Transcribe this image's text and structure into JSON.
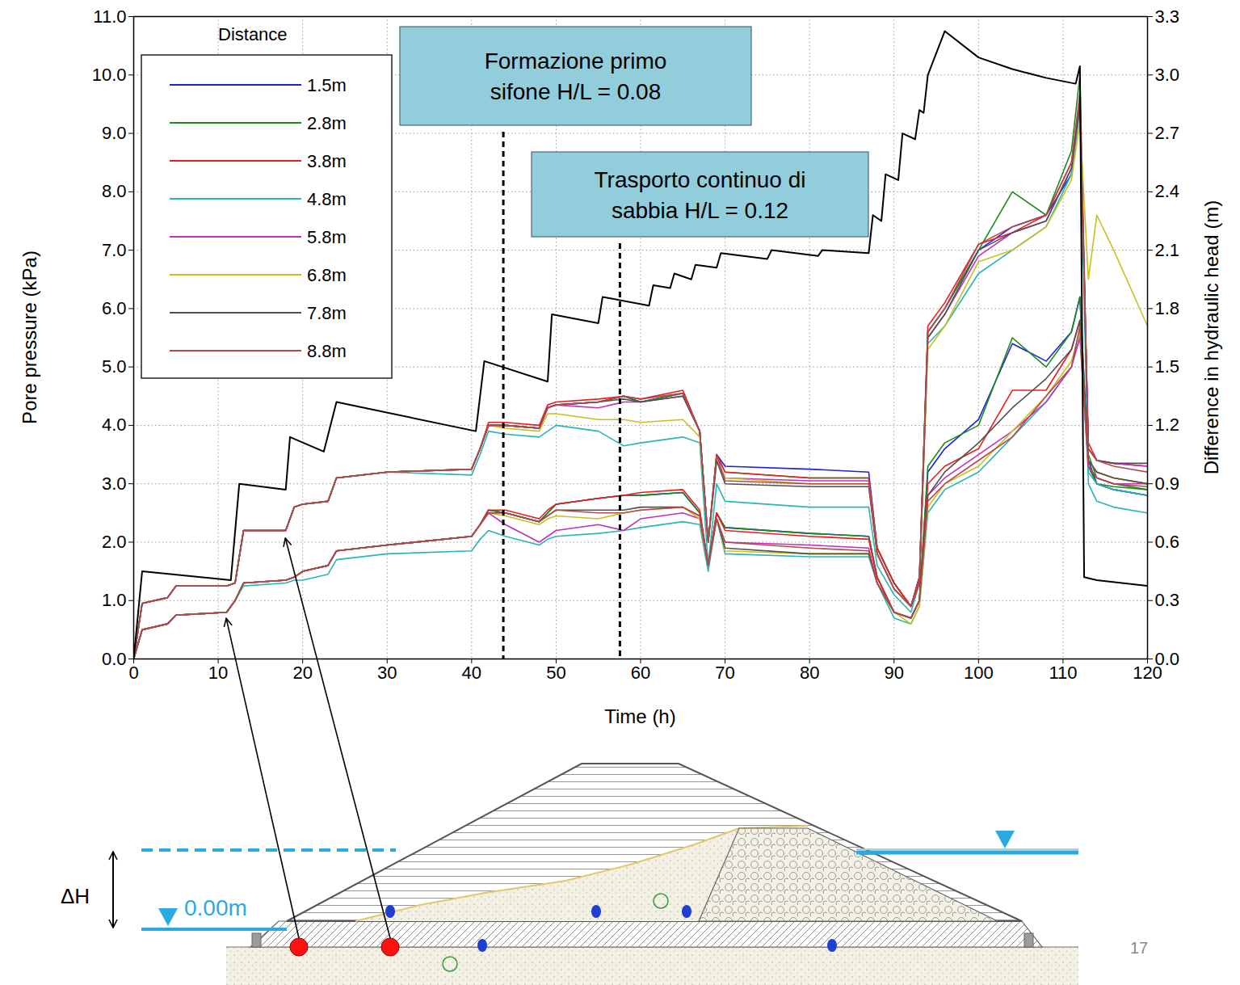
{
  "chart_data": {
    "type": "line",
    "x_label": "Time (h)",
    "y_label": "Pore pressure (kPa)",
    "y2_label": "Difference in hydraulic head (m)",
    "legend_title": "Distance",
    "legend": "top-left",
    "grid": true,
    "xlim": [
      0,
      120
    ],
    "xticks": [
      0,
      10,
      20,
      30,
      40,
      50,
      60,
      70,
      80,
      90,
      100,
      110,
      120
    ],
    "ylim": [
      0,
      11
    ],
    "yticks": [
      {
        "value": 0,
        "label": "0.0"
      },
      {
        "value": 1,
        "label": "1.0"
      },
      {
        "value": 2,
        "label": "2.0"
      },
      {
        "value": 3,
        "label": "3.0"
      },
      {
        "value": 4,
        "label": "4.0"
      },
      {
        "value": 5,
        "label": "5.0"
      },
      {
        "value": 6,
        "label": "6.0"
      },
      {
        "value": 7,
        "label": "7.0"
      },
      {
        "value": 8,
        "label": "8.0"
      },
      {
        "value": 9,
        "label": "9.0"
      },
      {
        "value": 10,
        "label": "10.0"
      },
      {
        "value": 11,
        "label": "11.0"
      }
    ],
    "y2lim": [
      0,
      3.3
    ],
    "y2ticks": [
      {
        "value": 0,
        "label": "0.0"
      },
      0.3,
      0.6,
      0.9,
      1.2,
      1.5,
      1.8,
      2.1,
      2.4,
      2.7,
      {
        "value": 3,
        "label": "3.0"
      },
      3.3
    ],
    "x": [
      0,
      1,
      4,
      5,
      11,
      12,
      13,
      18,
      19,
      20,
      23,
      24,
      30,
      40,
      41,
      42,
      44,
      48,
      49,
      50,
      55,
      58,
      60,
      65,
      67,
      68,
      69,
      70,
      80,
      87,
      88,
      90,
      92,
      93,
      94,
      96,
      100,
      104,
      108,
      111,
      112,
      113,
      114,
      116,
      120
    ],
    "series": [
      {
        "name": "1.5m",
        "color": "#1f1fe0",
        "values": [
          0,
          0.95,
          1.05,
          1.25,
          1.25,
          1.3,
          2.2,
          2.2,
          2.6,
          2.65,
          2.7,
          3.1,
          3.2,
          3.25,
          3.6,
          4.0,
          4.0,
          3.95,
          4.3,
          4.35,
          4.4,
          4.5,
          4.4,
          4.55,
          3.9,
          2.0,
          3.5,
          3.3,
          3.25,
          3.2,
          1.9,
          1.3,
          0.9,
          1.4,
          5.6,
          6.0,
          7.0,
          7.4,
          7.6,
          8.3,
          9.6,
          3.4,
          3.0,
          2.9,
          2.8
        ]
      },
      {
        "name": "2.8m",
        "color": "#1a8a1a",
        "values": [
          0,
          0.95,
          1.05,
          1.25,
          1.25,
          1.3,
          2.2,
          2.2,
          2.6,
          2.65,
          2.7,
          3.1,
          3.2,
          3.25,
          3.6,
          4.0,
          4.0,
          3.95,
          4.3,
          4.35,
          4.4,
          4.5,
          4.4,
          4.55,
          3.9,
          2.0,
          3.5,
          3.2,
          3.1,
          3.1,
          1.9,
          1.3,
          0.9,
          1.4,
          5.6,
          6.0,
          7.0,
          8.0,
          7.6,
          8.7,
          10.0,
          3.5,
          3.1,
          3.0,
          2.9
        ]
      },
      {
        "name": "3.8m",
        "color": "#ee1c1c",
        "values": [
          0,
          0.95,
          1.05,
          1.25,
          1.25,
          1.3,
          2.2,
          2.2,
          2.6,
          2.65,
          2.7,
          3.1,
          3.2,
          3.25,
          3.6,
          4.05,
          4.05,
          4.0,
          4.35,
          4.4,
          4.45,
          4.5,
          4.45,
          4.6,
          3.9,
          2.0,
          3.5,
          3.2,
          3.1,
          3.1,
          1.9,
          1.3,
          0.9,
          1.4,
          5.7,
          6.1,
          7.1,
          7.3,
          7.6,
          8.5,
          9.6,
          3.7,
          3.4,
          3.35,
          3.3
        ]
      },
      {
        "name": "4.8m",
        "color": "#2ab5b5",
        "values": [
          0,
          0.95,
          1.05,
          1.25,
          1.25,
          1.3,
          2.2,
          2.2,
          2.6,
          2.65,
          2.7,
          3.1,
          3.2,
          3.15,
          3.5,
          3.9,
          3.85,
          3.8,
          3.9,
          4.0,
          3.9,
          3.65,
          3.7,
          3.8,
          3.7,
          1.6,
          3.0,
          2.7,
          2.6,
          2.6,
          1.6,
          1.1,
          0.8,
          1.3,
          5.4,
          5.7,
          6.6,
          7.0,
          7.4,
          8.3,
          9.4,
          3.0,
          2.7,
          2.6,
          2.5
        ]
      },
      {
        "name": "5.8m",
        "color": "#c030c0",
        "values": [
          0,
          0.95,
          1.05,
          1.25,
          1.25,
          1.3,
          2.2,
          2.2,
          2.6,
          2.65,
          2.7,
          3.1,
          3.2,
          3.25,
          3.6,
          4.0,
          4.0,
          3.95,
          4.3,
          4.35,
          4.3,
          4.4,
          4.4,
          4.5,
          3.9,
          2.0,
          3.4,
          3.1,
          3.05,
          3.05,
          1.8,
          1.2,
          0.9,
          1.3,
          5.5,
          5.9,
          6.9,
          7.3,
          7.5,
          8.4,
          9.5,
          3.6,
          3.4,
          3.35,
          3.3
        ]
      },
      {
        "name": "6.8m",
        "color": "#c8c020",
        "values": [
          0,
          0.95,
          1.05,
          1.25,
          1.25,
          1.3,
          2.2,
          2.2,
          2.6,
          2.65,
          2.7,
          3.1,
          3.2,
          3.25,
          3.6,
          4.0,
          3.95,
          3.9,
          4.2,
          4.2,
          4.1,
          4.1,
          4.05,
          4.1,
          3.8,
          2.0,
          3.4,
          3.1,
          3.0,
          3.0,
          1.8,
          1.2,
          0.9,
          1.3,
          5.3,
          5.7,
          6.8,
          7.0,
          7.4,
          8.2,
          9.2,
          6.5,
          7.6,
          7.0,
          5.7
        ]
      },
      {
        "name": "7.8m",
        "color": "#505050",
        "values": [
          0,
          0.95,
          1.05,
          1.25,
          1.25,
          1.3,
          2.2,
          2.2,
          2.6,
          2.65,
          2.7,
          3.1,
          3.2,
          3.25,
          3.6,
          4.0,
          4.0,
          3.95,
          4.3,
          4.35,
          4.4,
          4.45,
          4.4,
          4.5,
          3.9,
          2.0,
          3.4,
          3.0,
          2.95,
          2.95,
          1.8,
          1.2,
          0.9,
          1.3,
          5.5,
          5.9,
          7.0,
          7.3,
          7.5,
          8.4,
          9.5,
          3.6,
          3.4,
          3.35,
          3.35
        ]
      },
      {
        "name": "8.8m",
        "color": "#b5484d",
        "values": [
          0,
          0.95,
          1.05,
          1.25,
          1.25,
          1.3,
          2.2,
          2.2,
          2.6,
          2.65,
          2.7,
          3.1,
          3.2,
          3.25,
          3.6,
          4.0,
          4.0,
          3.95,
          4.3,
          4.35,
          4.4,
          4.5,
          4.45,
          4.55,
          3.9,
          2.0,
          3.5,
          3.05,
          3.0,
          3.0,
          1.8,
          1.2,
          0.9,
          1.3,
          5.6,
          6.0,
          7.1,
          7.4,
          7.6,
          8.5,
          9.7,
          3.6,
          3.4,
          3.3,
          3.2
        ]
      },
      {
        "name": "1.5m",
        "color": "#1f1fe0",
        "values": [
          0,
          0.5,
          0.6,
          0.75,
          0.8,
          1.0,
          1.3,
          1.35,
          1.4,
          1.5,
          1.6,
          1.85,
          1.95,
          2.1,
          2.3,
          2.55,
          2.5,
          2.35,
          2.5,
          2.65,
          2.75,
          2.8,
          2.8,
          2.85,
          2.5,
          1.6,
          2.5,
          2.25,
          2.15,
          2.1,
          1.4,
          0.8,
          0.7,
          1.0,
          3.2,
          3.6,
          4.1,
          5.4,
          5.1,
          5.6,
          6.2,
          3.3,
          3.0,
          2.9,
          2.8
        ]
      },
      {
        "name": "2.8m",
        "color": "#1a8a1a",
        "values": [
          0,
          0.5,
          0.6,
          0.75,
          0.8,
          1.0,
          1.3,
          1.35,
          1.4,
          1.5,
          1.6,
          1.85,
          1.95,
          2.1,
          2.3,
          2.55,
          2.5,
          2.35,
          2.5,
          2.65,
          2.75,
          2.8,
          2.8,
          2.85,
          2.5,
          1.6,
          2.5,
          2.25,
          2.15,
          2.1,
          1.4,
          0.8,
          0.7,
          1.0,
          3.3,
          3.7,
          4.0,
          5.5,
          5.0,
          5.6,
          6.2,
          3.3,
          3.0,
          2.95,
          2.9
        ]
      },
      {
        "name": "3.8m",
        "color": "#ee1c1c",
        "values": [
          0,
          0.5,
          0.6,
          0.75,
          0.8,
          1.0,
          1.3,
          1.35,
          1.4,
          1.5,
          1.6,
          1.85,
          1.95,
          2.1,
          2.3,
          2.55,
          2.55,
          2.4,
          2.55,
          2.65,
          2.75,
          2.8,
          2.85,
          2.9,
          2.55,
          1.6,
          2.5,
          2.2,
          2.1,
          2.05,
          1.4,
          0.8,
          0.7,
          1.0,
          3.0,
          3.3,
          3.6,
          4.6,
          4.6,
          5.3,
          5.8,
          3.4,
          3.2,
          3.1,
          3.0
        ]
      },
      {
        "name": "4.8m",
        "color": "#2ab5b5",
        "values": [
          0,
          0.5,
          0.6,
          0.75,
          0.8,
          1.0,
          1.25,
          1.3,
          1.35,
          1.35,
          1.45,
          1.7,
          1.8,
          1.85,
          2.05,
          2.2,
          2.1,
          1.95,
          2.05,
          2.1,
          2.15,
          2.2,
          2.25,
          2.35,
          2.3,
          1.5,
          2.4,
          1.8,
          1.75,
          1.75,
          1.3,
          0.7,
          0.6,
          0.9,
          2.5,
          2.9,
          3.2,
          3.8,
          4.4,
          5.0,
          5.6,
          3.2,
          3.0,
          2.9,
          2.8
        ]
      },
      {
        "name": "5.8m",
        "color": "#c030c0",
        "values": [
          0,
          0.5,
          0.6,
          0.75,
          0.8,
          1.0,
          1.3,
          1.35,
          1.4,
          1.5,
          1.6,
          1.85,
          1.95,
          2.1,
          2.3,
          2.5,
          2.3,
          2.0,
          2.1,
          2.2,
          2.3,
          2.2,
          2.4,
          2.5,
          2.4,
          1.6,
          2.4,
          2.0,
          1.95,
          1.9,
          1.3,
          0.8,
          0.7,
          1.0,
          2.8,
          3.1,
          3.5,
          3.9,
          4.4,
          5.0,
          5.5,
          3.3,
          3.1,
          3.0,
          3.0
        ]
      },
      {
        "name": "6.8m",
        "color": "#c8c020",
        "values": [
          0,
          0.5,
          0.6,
          0.75,
          0.8,
          1.0,
          1.3,
          1.35,
          1.4,
          1.5,
          1.6,
          1.85,
          1.95,
          2.1,
          2.3,
          2.5,
          2.45,
          2.3,
          2.4,
          2.45,
          2.4,
          2.5,
          2.55,
          2.6,
          2.4,
          1.6,
          2.4,
          1.85,
          1.8,
          1.8,
          1.3,
          0.8,
          0.6,
          0.9,
          2.6,
          3.0,
          3.3,
          3.9,
          4.5,
          5.1,
          5.6,
          3.4,
          3.2,
          3.1,
          3.0
        ]
      },
      {
        "name": "7.8m",
        "color": "#505050",
        "values": [
          0,
          0.5,
          0.6,
          0.75,
          0.8,
          1.0,
          1.3,
          1.35,
          1.4,
          1.5,
          1.6,
          1.85,
          1.95,
          2.1,
          2.3,
          2.5,
          2.5,
          2.35,
          2.45,
          2.55,
          2.55,
          2.55,
          2.6,
          2.6,
          2.45,
          1.6,
          2.4,
          1.9,
          1.8,
          1.8,
          1.3,
          0.8,
          0.7,
          1.0,
          2.8,
          3.2,
          3.7,
          4.3,
          4.8,
          5.3,
          5.8,
          3.4,
          3.2,
          3.1,
          3.0
        ]
      },
      {
        "name": "8.8m",
        "color": "#b5484d",
        "values": [
          0,
          0.5,
          0.6,
          0.75,
          0.8,
          1.0,
          1.3,
          1.35,
          1.4,
          1.5,
          1.6,
          1.85,
          1.95,
          2.1,
          2.3,
          2.5,
          2.5,
          2.35,
          2.45,
          2.55,
          2.5,
          2.5,
          2.55,
          2.6,
          2.45,
          1.6,
          2.4,
          2.0,
          1.9,
          1.85,
          1.3,
          0.8,
          0.7,
          1.0,
          2.7,
          3.0,
          3.4,
          3.8,
          4.5,
          5.0,
          5.7,
          3.3,
          3.1,
          3.0,
          2.95
        ]
      },
      {
        "color": "#000000",
        "axis": "y2",
        "x": [
          0,
          1,
          11.5,
          12.5,
          18,
          18.5,
          22.5,
          24,
          40.5,
          41.5,
          49,
          49.5,
          55,
          55.5,
          61,
          61.5,
          63.5,
          64,
          66,
          66.5,
          69,
          69.5,
          75,
          75.5,
          81,
          81.5,
          87,
          87.5,
          88.5,
          89,
          90.5,
          91,
          92.5,
          93,
          93.5,
          94,
          96,
          100,
          104,
          108,
          111.5,
          112,
          112.5,
          114,
          120
        ],
        "values": [
          0,
          0.45,
          0.405,
          0.9,
          0.87,
          1.14,
          1.065,
          1.32,
          1.17,
          1.53,
          1.425,
          1.77,
          1.725,
          1.86,
          1.815,
          1.92,
          1.905,
          1.98,
          1.95,
          2.025,
          2.01,
          2.085,
          2.055,
          2.1,
          2.07,
          2.1,
          2.085,
          2.28,
          2.25,
          2.49,
          2.46,
          2.7,
          2.67,
          2.82,
          2.805,
          3.0,
          3.225,
          3.09,
          3.03,
          2.985,
          2.955,
          3.045,
          0.42,
          0.405,
          0.375
        ]
      }
    ],
    "annotations": [
      {
        "lines": [
          "Formazione primo",
          "sifone H/L = 0.08"
        ],
        "x": 43.8,
        "line_style": "dashed"
      },
      {
        "lines": [
          "Trasporto continuo di",
          "sabbia H/L = 0.12"
        ],
        "x": 57.6,
        "line_style": "dashed"
      }
    ]
  },
  "diagram": {
    "delta_label": "ΔH",
    "level_label": "0.00m",
    "page_number": "17"
  }
}
